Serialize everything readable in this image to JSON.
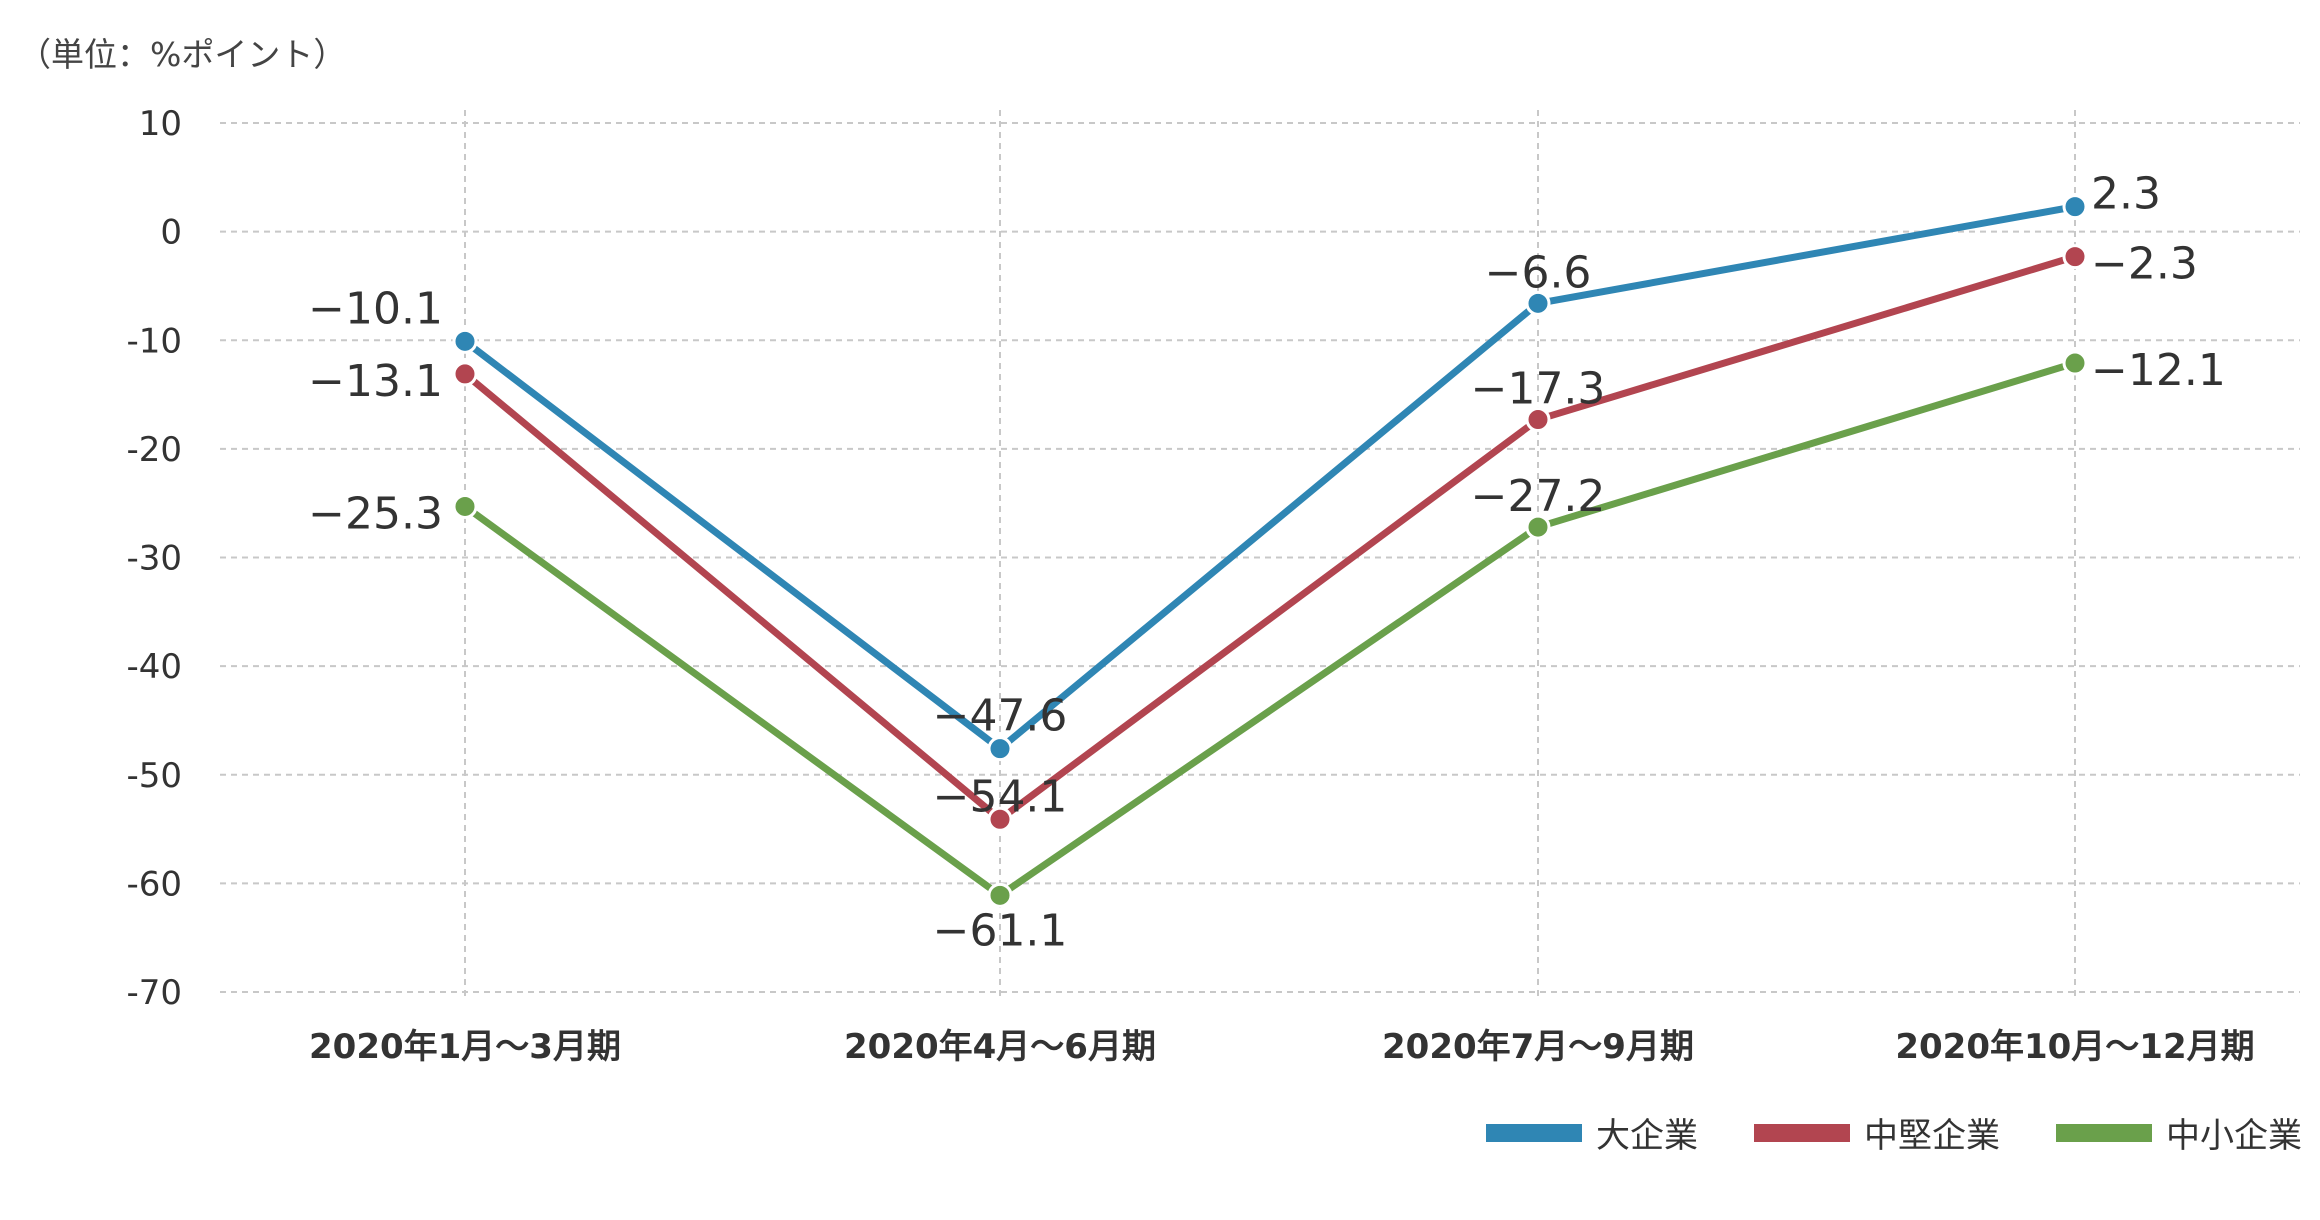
{
  "unit_label": "（単位：%ポイント）",
  "colors": {
    "large": "#2F86B4",
    "mid": "#B24550",
    "small": "#6AA04B",
    "grid": "#C8C8C8",
    "axis_text": "#333333"
  },
  "chart_data": {
    "type": "line",
    "categories": [
      "2020年1月〜3月期",
      "2020年4月〜6月期",
      "2020年7月〜9月期",
      "2020年10月〜12月期"
    ],
    "series": [
      {
        "name": "大企業",
        "color_key": "large",
        "values": [
          -10.1,
          -47.6,
          -6.6,
          2.3
        ],
        "labels": [
          "−10.1",
          "−47.6",
          "−6.6",
          "2.3"
        ]
      },
      {
        "name": "中堅企業",
        "color_key": "mid",
        "values": [
          -13.1,
          -54.1,
          -17.3,
          -2.3
        ],
        "labels": [
          "−13.1",
          "−54.1",
          "−17.3",
          "−2.3"
        ]
      },
      {
        "name": "中小企業",
        "color_key": "small",
        "values": [
          -25.3,
          -61.1,
          -27.2,
          -12.1
        ],
        "labels": [
          "−25.3",
          "−61.1",
          "−27.2",
          "−12.1"
        ]
      }
    ],
    "ylim": [
      -70,
      10
    ],
    "yticks": [
      10,
      0,
      -10,
      -20,
      -30,
      -40,
      -50,
      -60,
      -70
    ],
    "ytick_labels": [
      "10",
      "0",
      "-10",
      "-20",
      "-30",
      "-40",
      "-50",
      "-60",
      "-70"
    ],
    "grid": true,
    "legend_position": "bottom-right",
    "xlabel": "",
    "ylabel": ""
  }
}
